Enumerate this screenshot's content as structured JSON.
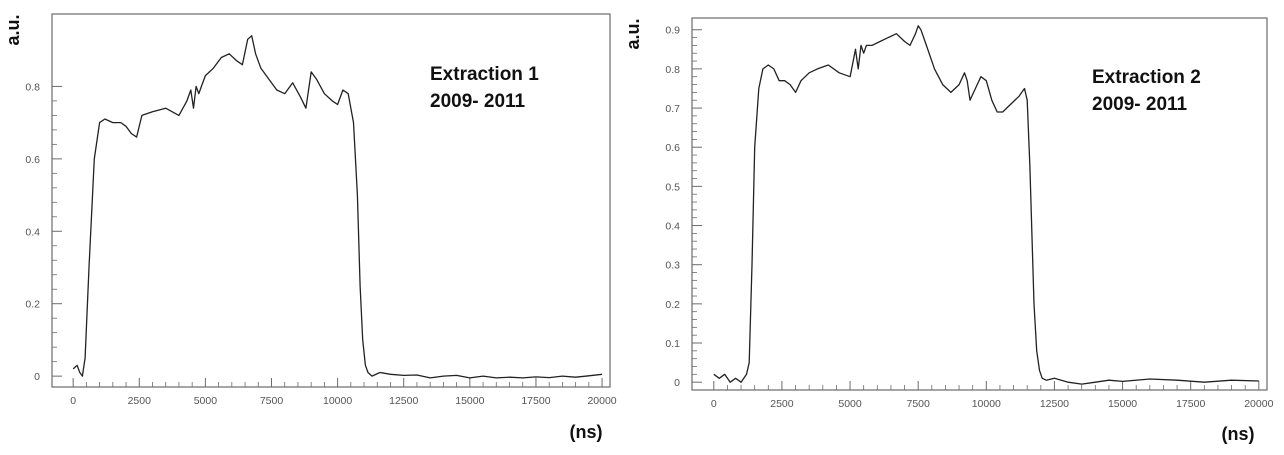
{
  "chart_data": [
    {
      "type": "line",
      "ylabel": "a.u.",
      "xlabel": "(ns)",
      "annotation": [
        "Extraction 1",
        "2009- 2011"
      ],
      "xlim": [
        -800,
        20300
      ],
      "ylim": [
        -0.03,
        1.0
      ],
      "xticks": [
        0,
        2500,
        5000,
        7500,
        10000,
        12500,
        15000,
        17500,
        20000
      ],
      "yticks": [
        0,
        0.2,
        0.4,
        0.6,
        0.8
      ],
      "ytick_labels": [
        "0",
        "0.2",
        "0.4",
        "0.6",
        "0.8"
      ],
      "series": [
        {
          "x": [
            0,
            150,
            250,
            350,
            450,
            600,
            800,
            1000,
            1200,
            1500,
            1800,
            2000,
            2200,
            2400,
            2600,
            3000,
            3500,
            4000,
            4300,
            4450,
            4550,
            4650,
            4750,
            4850,
            5000,
            5300,
            5600,
            5900,
            6200,
            6400,
            6600,
            6750,
            6900,
            7100,
            7400,
            7700,
            8000,
            8300,
            8600,
            8800,
            9000,
            9200,
            9500,
            9800,
            10000,
            10200,
            10400,
            10600,
            10750,
            10850,
            10950,
            11050,
            11150,
            11300,
            11600,
            12000,
            12500,
            13000,
            13500,
            14000,
            14500,
            15000,
            15500,
            16000,
            16500,
            17000,
            17500,
            18000,
            18500,
            19000,
            19500,
            20000
          ],
          "y": [
            0.02,
            0.03,
            0.01,
            0.0,
            0.05,
            0.3,
            0.6,
            0.7,
            0.71,
            0.7,
            0.7,
            0.69,
            0.67,
            0.66,
            0.72,
            0.73,
            0.74,
            0.72,
            0.76,
            0.79,
            0.74,
            0.8,
            0.78,
            0.8,
            0.83,
            0.85,
            0.88,
            0.89,
            0.87,
            0.86,
            0.93,
            0.94,
            0.89,
            0.85,
            0.82,
            0.79,
            0.78,
            0.81,
            0.77,
            0.74,
            0.84,
            0.82,
            0.78,
            0.76,
            0.75,
            0.79,
            0.78,
            0.7,
            0.5,
            0.25,
            0.1,
            0.03,
            0.01,
            0.0,
            0.01,
            0.005,
            0.002,
            0.003,
            -0.005,
            0.0,
            0.002,
            -0.005,
            0.0,
            -0.005,
            -0.003,
            -0.005,
            -0.002,
            -0.004,
            0.0,
            -0.003,
            0.001,
            0.005
          ]
        }
      ]
    },
    {
      "type": "line",
      "ylabel": "a.u.",
      "xlabel": "(ns)",
      "annotation": [
        "Extraction 2",
        "2009- 2011"
      ],
      "xlim": [
        -800,
        20300
      ],
      "ylim": [
        -0.02,
        0.93
      ],
      "xticks": [
        0,
        2500,
        5000,
        7500,
        10000,
        12500,
        15000,
        17500,
        20000
      ],
      "yticks": [
        0,
        0.1,
        0.2,
        0.3,
        0.4,
        0.5,
        0.6,
        0.7,
        0.8,
        0.9
      ],
      "ytick_labels": [
        "0",
        "0.1",
        "0.2",
        "0.3",
        "0.4",
        "0.5",
        "0.6",
        "0.7",
        "0.8",
        "0.9"
      ],
      "series": [
        {
          "x": [
            0,
            200,
            400,
            600,
            800,
            1000,
            1200,
            1300,
            1400,
            1500,
            1650,
            1800,
            2000,
            2200,
            2400,
            2600,
            2800,
            3000,
            3200,
            3500,
            3800,
            4200,
            4600,
            5000,
            5200,
            5300,
            5400,
            5500,
            5600,
            5800,
            6100,
            6400,
            6700,
            7000,
            7200,
            7400,
            7500,
            7600,
            7800,
            8100,
            8400,
            8700,
            9000,
            9200,
            9300,
            9400,
            9600,
            9800,
            10000,
            10200,
            10400,
            10600,
            10900,
            11200,
            11400,
            11500,
            11600,
            11750,
            11850,
            11950,
            12050,
            12200,
            12500,
            13000,
            13500,
            14000,
            14500,
            15000,
            16000,
            17000,
            18000,
            19000,
            20000
          ],
          "y": [
            0.02,
            0.01,
            0.02,
            0.0,
            0.01,
            0.0,
            0.02,
            0.05,
            0.3,
            0.6,
            0.75,
            0.8,
            0.81,
            0.8,
            0.77,
            0.77,
            0.76,
            0.74,
            0.77,
            0.79,
            0.8,
            0.81,
            0.79,
            0.78,
            0.85,
            0.8,
            0.86,
            0.84,
            0.86,
            0.86,
            0.87,
            0.88,
            0.89,
            0.87,
            0.86,
            0.89,
            0.91,
            0.9,
            0.86,
            0.8,
            0.76,
            0.74,
            0.76,
            0.79,
            0.77,
            0.72,
            0.75,
            0.78,
            0.77,
            0.72,
            0.69,
            0.69,
            0.71,
            0.73,
            0.75,
            0.72,
            0.55,
            0.2,
            0.08,
            0.03,
            0.01,
            0.005,
            0.01,
            0.0,
            -0.005,
            0.0,
            0.005,
            0.002,
            0.008,
            0.005,
            0.0,
            0.005,
            0.003
          ]
        }
      ]
    }
  ]
}
